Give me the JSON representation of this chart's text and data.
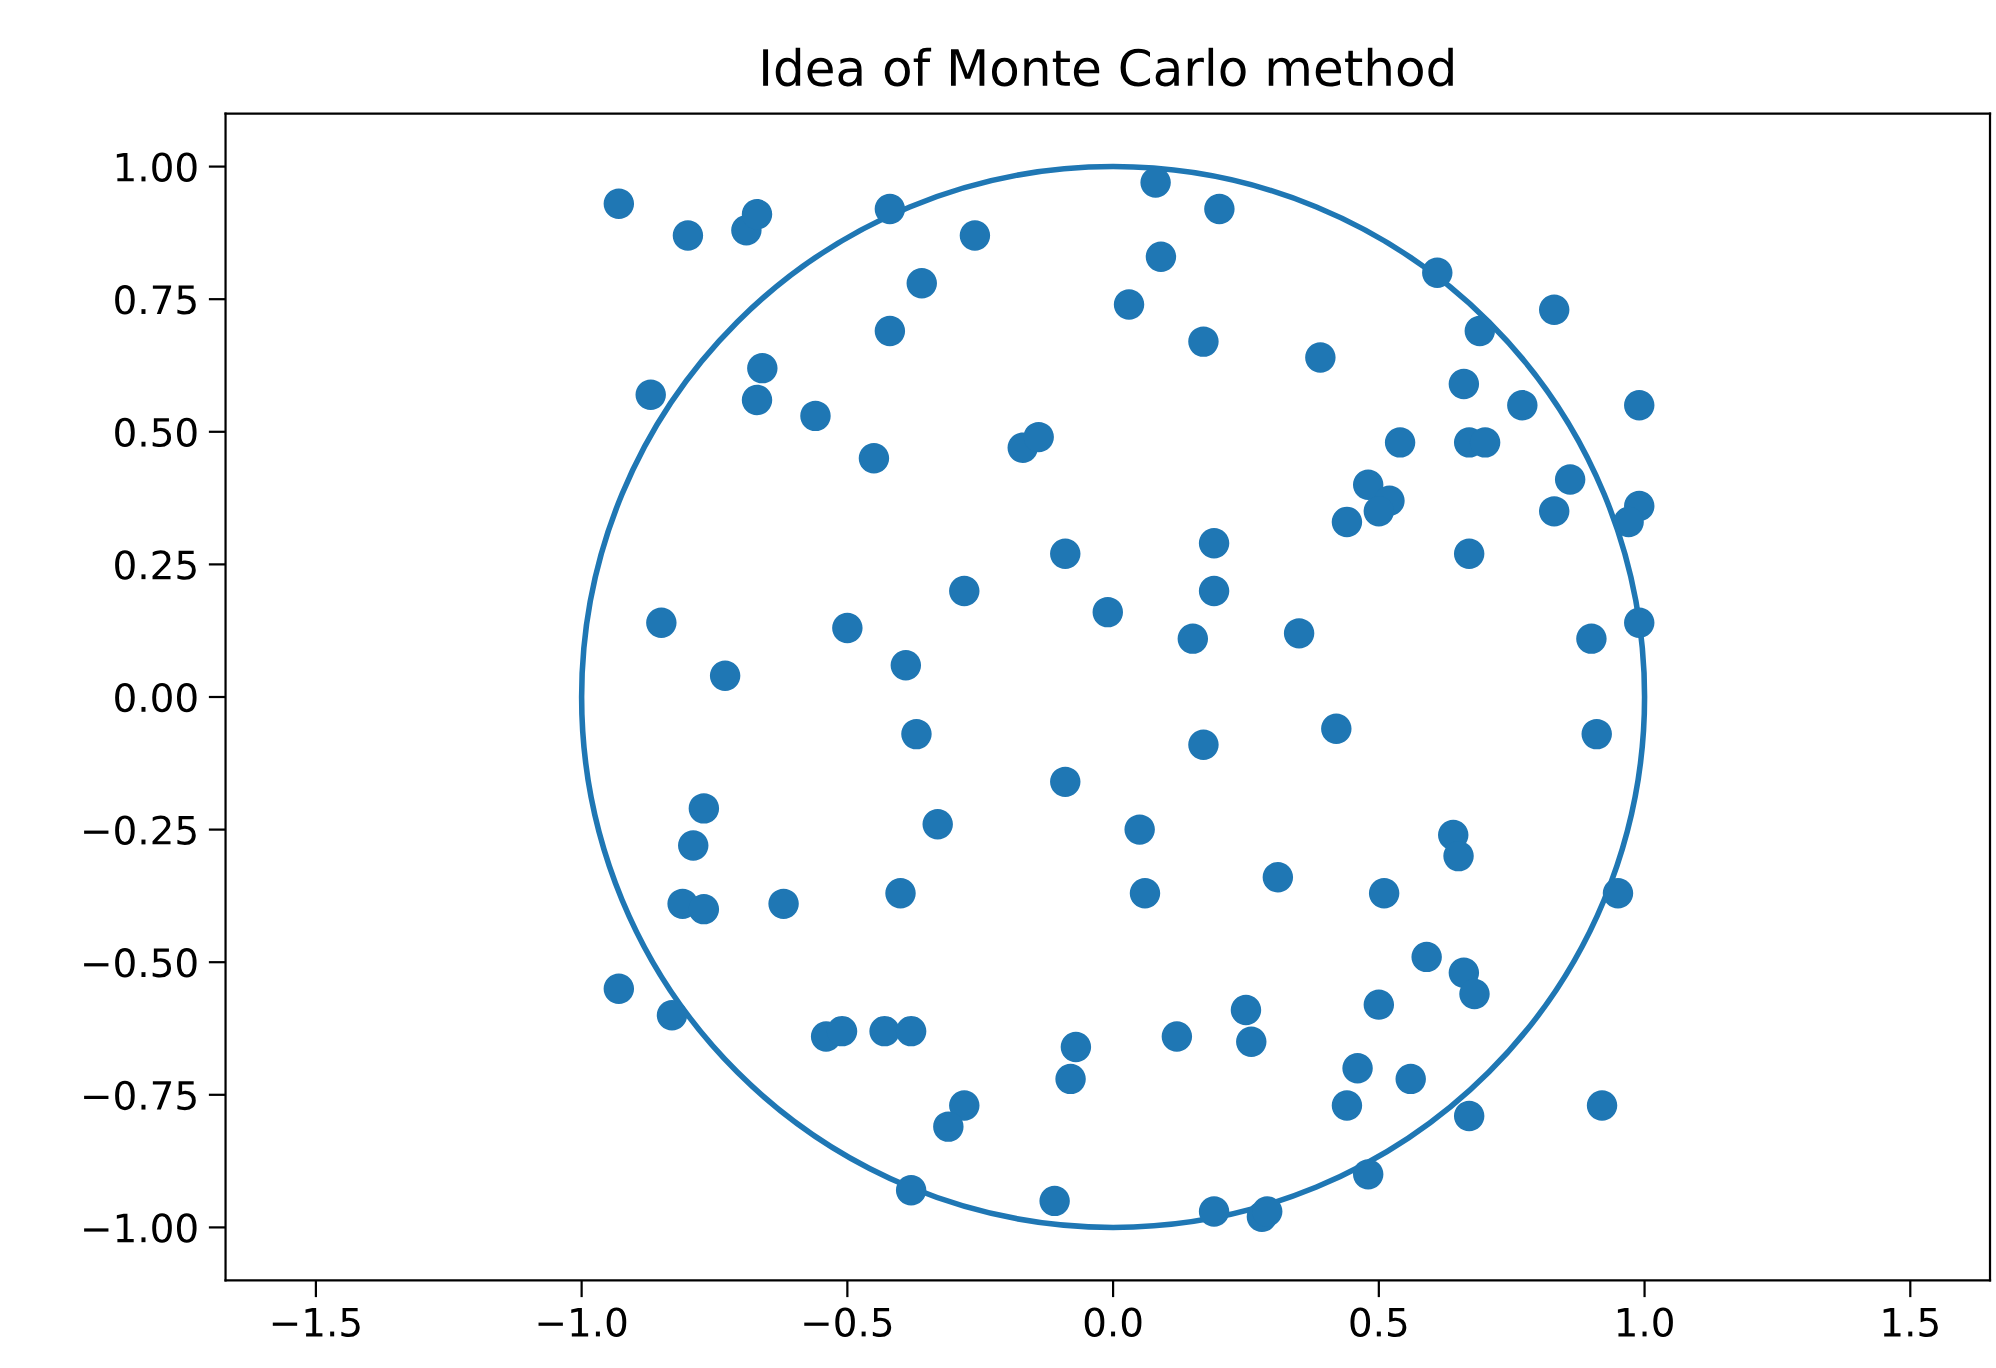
{
  "chart_data": {
    "type": "scatter",
    "title": "Idea of Monte Carlo method",
    "xlim": [
      -1.67,
      1.65
    ],
    "ylim": [
      -1.1,
      1.1
    ],
    "xticks": [
      {
        "value": -1.5,
        "label": "−1.5"
      },
      {
        "value": -1.0,
        "label": "−1.0"
      },
      {
        "value": -0.5,
        "label": "−0.5"
      },
      {
        "value": 0.0,
        "label": "0.0"
      },
      {
        "value": 0.5,
        "label": "0.5"
      },
      {
        "value": 1.0,
        "label": "1.0"
      },
      {
        "value": 1.5,
        "label": "1.5"
      }
    ],
    "yticks": [
      {
        "value": -1.0,
        "label": "−1.00"
      },
      {
        "value": -0.75,
        "label": "−0.75"
      },
      {
        "value": -0.5,
        "label": "−0.50"
      },
      {
        "value": -0.25,
        "label": "−0.25"
      },
      {
        "value": 0.0,
        "label": "0.00"
      },
      {
        "value": 0.25,
        "label": "0.25"
      },
      {
        "value": 0.5,
        "label": "0.50"
      },
      {
        "value": 0.75,
        "label": "0.75"
      },
      {
        "value": 1.0,
        "label": "1.00"
      }
    ],
    "grid": false,
    "legend": false,
    "series": [
      {
        "type": "scatter",
        "color": "#1f77b4",
        "marker": "circle",
        "x": [
          -0.93,
          -0.8,
          -0.69,
          -0.67,
          -0.42,
          -0.26,
          -0.36,
          -0.42,
          -0.87,
          -0.66,
          -0.67,
          -0.56,
          -0.45,
          -0.17,
          -0.14,
          -0.85,
          -0.5,
          -0.28,
          -0.09,
          -0.01,
          -0.73,
          -0.39,
          -0.37,
          -0.09,
          0.05,
          0.06,
          -0.77,
          -0.79,
          -0.81,
          -0.77,
          -0.62,
          -0.4,
          -0.33,
          -0.93,
          -0.83,
          -0.54,
          -0.51,
          -0.43,
          -0.38,
          -0.28,
          -0.31,
          -0.07,
          -0.08,
          -0.38,
          -0.11,
          0.08,
          0.2,
          0.09,
          0.03,
          0.17,
          0.39,
          0.61,
          0.69,
          0.83,
          0.66,
          0.77,
          0.54,
          0.67,
          0.7,
          0.99,
          0.48,
          0.52,
          0.5,
          0.44,
          0.86,
          0.83,
          0.99,
          0.97,
          0.67,
          0.99,
          0.9,
          0.19,
          0.19,
          0.15,
          0.35,
          0.17,
          0.42,
          0.91,
          0.31,
          0.51,
          0.64,
          0.65,
          0.95,
          0.59,
          0.66,
          0.68,
          0.5,
          0.12,
          0.25,
          0.26,
          0.46,
          0.44,
          0.56,
          0.67,
          0.92,
          0.48,
          0.19,
          0.28,
          0.29
        ],
        "values": [
          0.93,
          0.87,
          0.88,
          0.91,
          0.92,
          0.87,
          0.78,
          0.69,
          0.57,
          0.62,
          0.56,
          0.53,
          0.45,
          0.47,
          0.49,
          0.14,
          0.13,
          0.2,
          0.27,
          0.16,
          0.04,
          0.06,
          -0.07,
          -0.16,
          -0.25,
          -0.37,
          -0.21,
          -0.28,
          -0.39,
          -0.4,
          -0.39,
          -0.37,
          -0.24,
          -0.55,
          -0.6,
          -0.64,
          -0.63,
          -0.63,
          -0.63,
          -0.77,
          -0.81,
          -0.66,
          -0.72,
          -0.93,
          -0.95,
          0.97,
          0.92,
          0.83,
          0.74,
          0.67,
          0.64,
          0.8,
          0.69,
          0.73,
          0.59,
          0.55,
          0.48,
          0.48,
          0.48,
          0.55,
          0.4,
          0.37,
          0.35,
          0.33,
          0.41,
          0.35,
          0.36,
          0.33,
          0.27,
          0.14,
          0.11,
          0.29,
          0.2,
          0.11,
          0.12,
          -0.09,
          -0.06,
          -0.07,
          -0.34,
          -0.37,
          -0.26,
          -0.3,
          -0.37,
          -0.49,
          -0.52,
          -0.56,
          -0.58,
          -0.64,
          -0.59,
          -0.65,
          -0.7,
          -0.77,
          -0.72,
          -0.79,
          -0.77,
          -0.9,
          -0.97,
          -0.98,
          -0.97
        ]
      }
    ]
  }
}
